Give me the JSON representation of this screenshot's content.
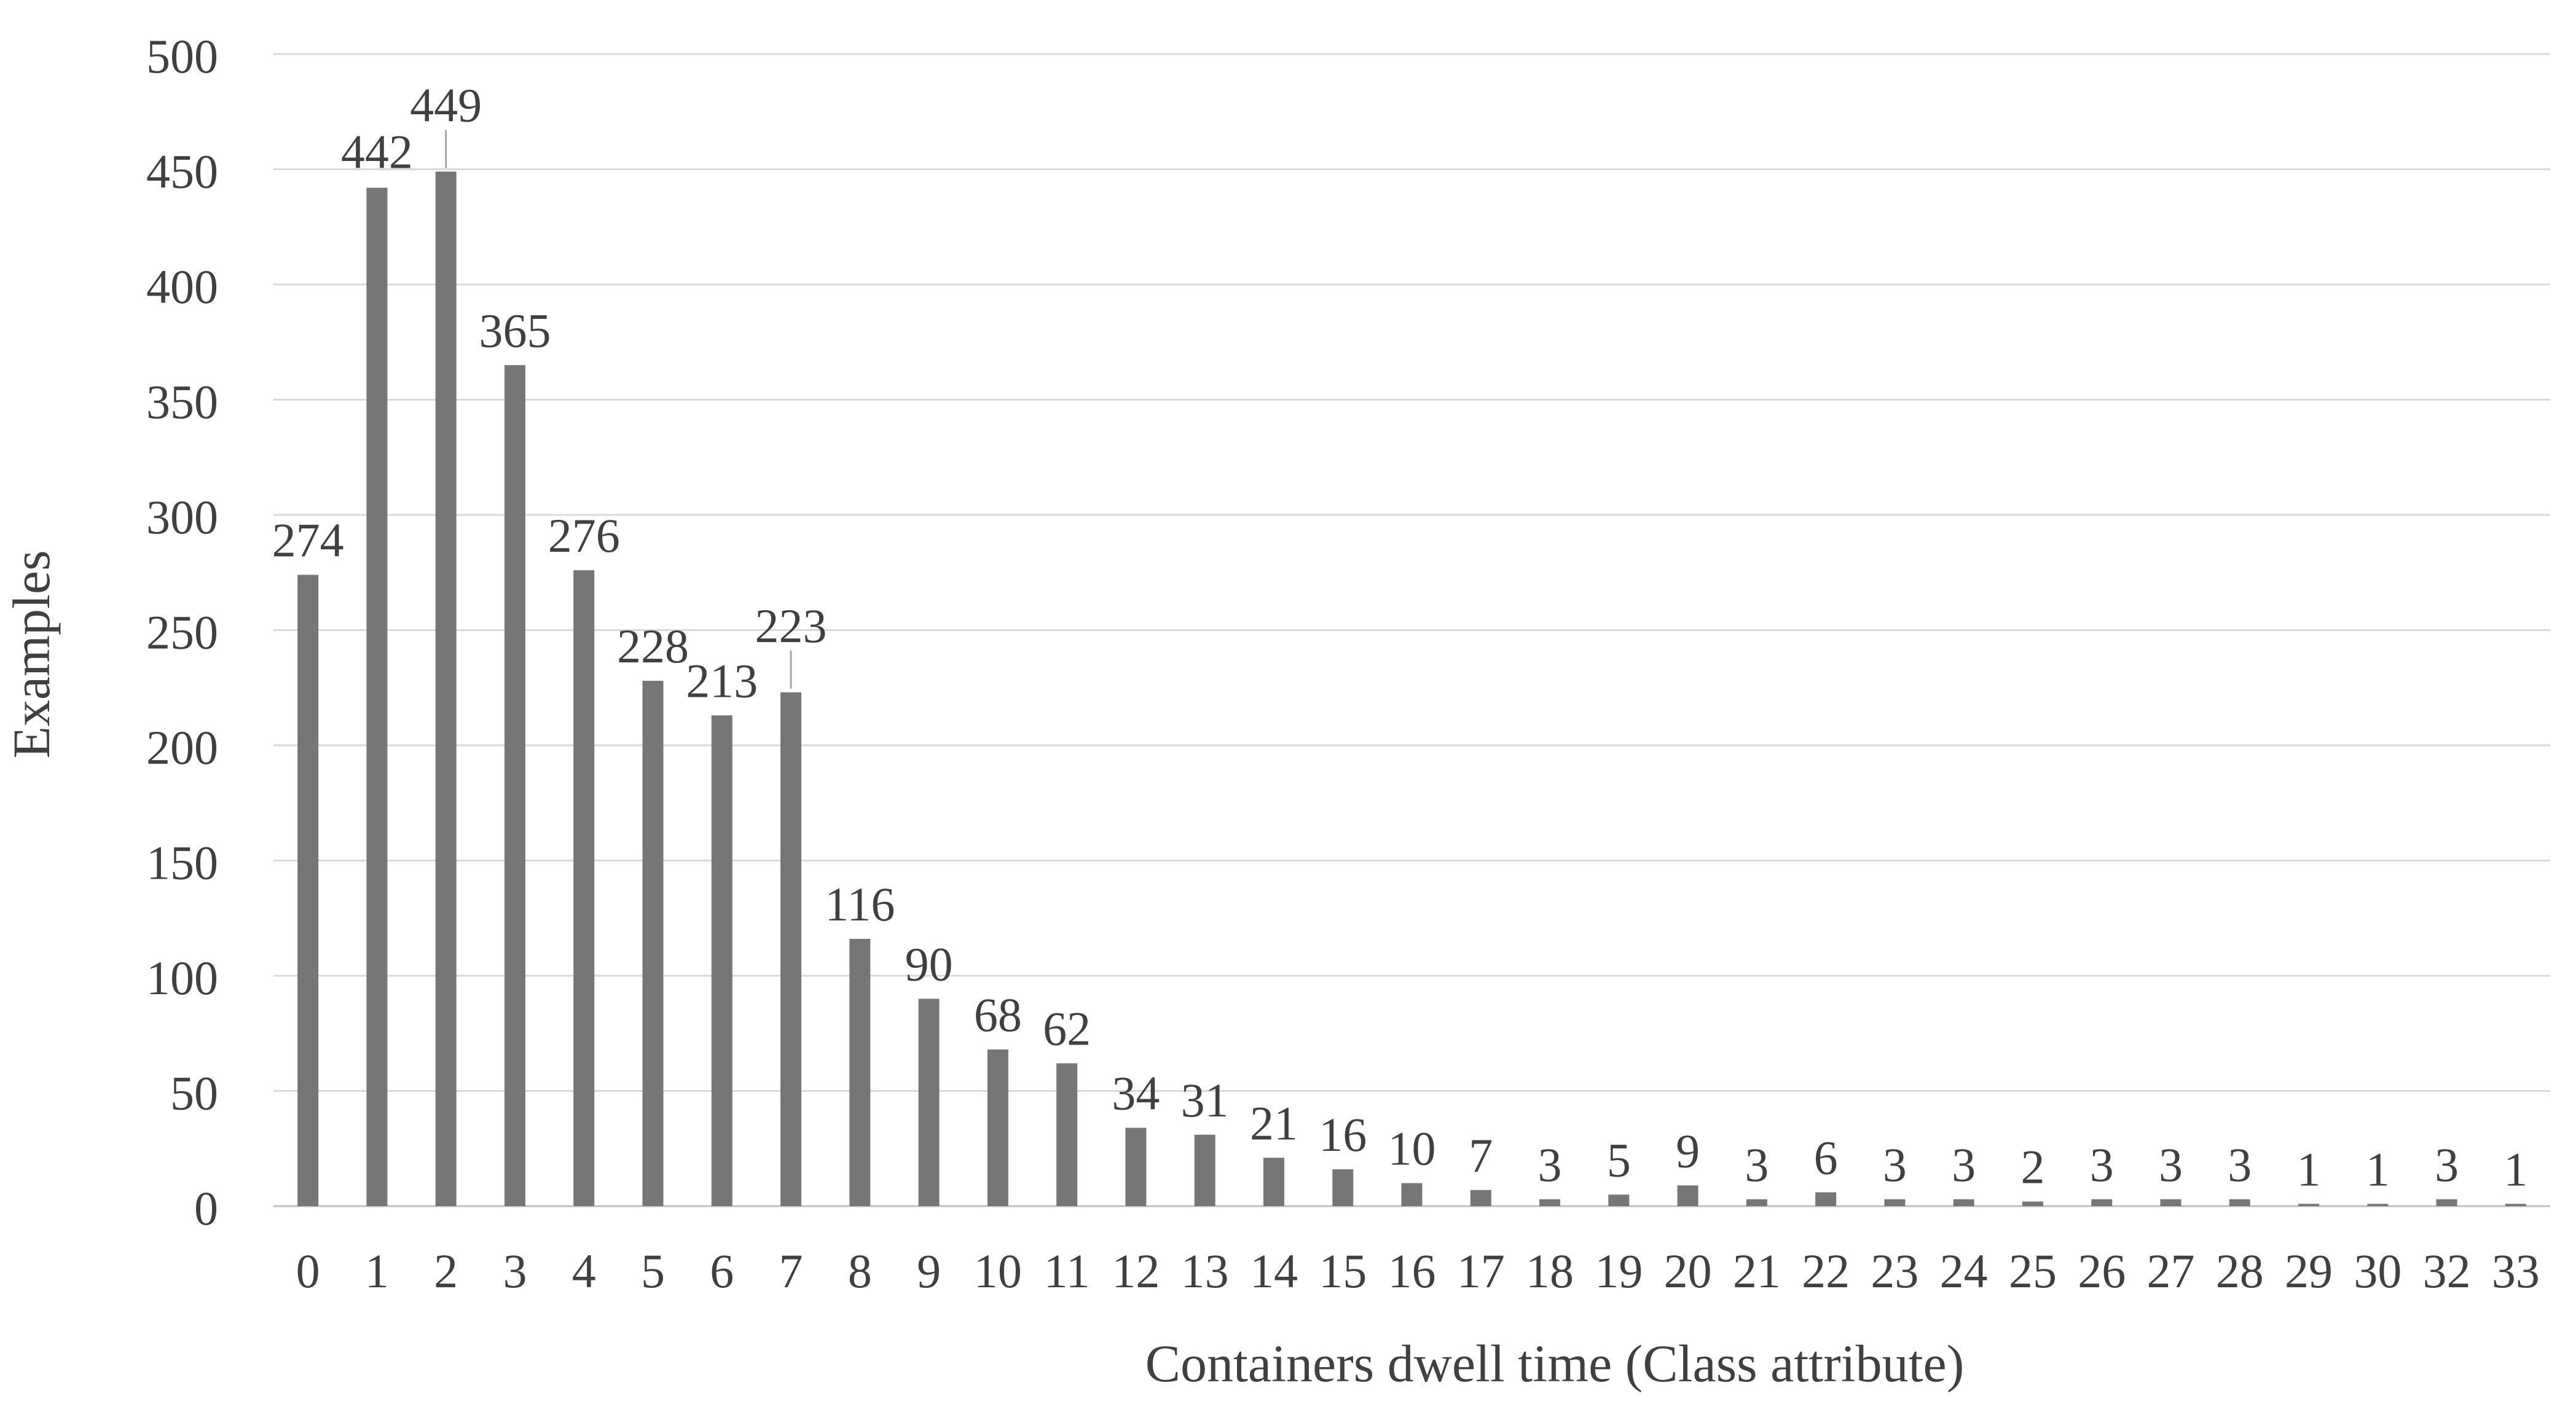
{
  "chart_data": {
    "type": "bar",
    "categories": [
      "0",
      "1",
      "2",
      "3",
      "4",
      "5",
      "6",
      "7",
      "8",
      "9",
      "10",
      "11",
      "12",
      "13",
      "14",
      "15",
      "16",
      "17",
      "18",
      "19",
      "20",
      "21",
      "22",
      "23",
      "24",
      "25",
      "26",
      "27",
      "28",
      "29",
      "30",
      "32",
      "33"
    ],
    "values": [
      274,
      442,
      449,
      365,
      276,
      228,
      213,
      223,
      116,
      90,
      68,
      62,
      34,
      31,
      21,
      16,
      10,
      7,
      3,
      5,
      9,
      3,
      6,
      3,
      3,
      2,
      3,
      3,
      3,
      1,
      1,
      3,
      1
    ],
    "title": "",
    "xlabel": "Containers  dwell time (Class attribute)",
    "ylabel": "Examples",
    "ylim": [
      0,
      500
    ],
    "yticks": [
      "0",
      "50",
      "100",
      "150",
      "200",
      "250",
      "300",
      "350",
      "400",
      "450",
      "500"
    ],
    "grid": true,
    "legend": "none",
    "bar_color": "#767676"
  }
}
